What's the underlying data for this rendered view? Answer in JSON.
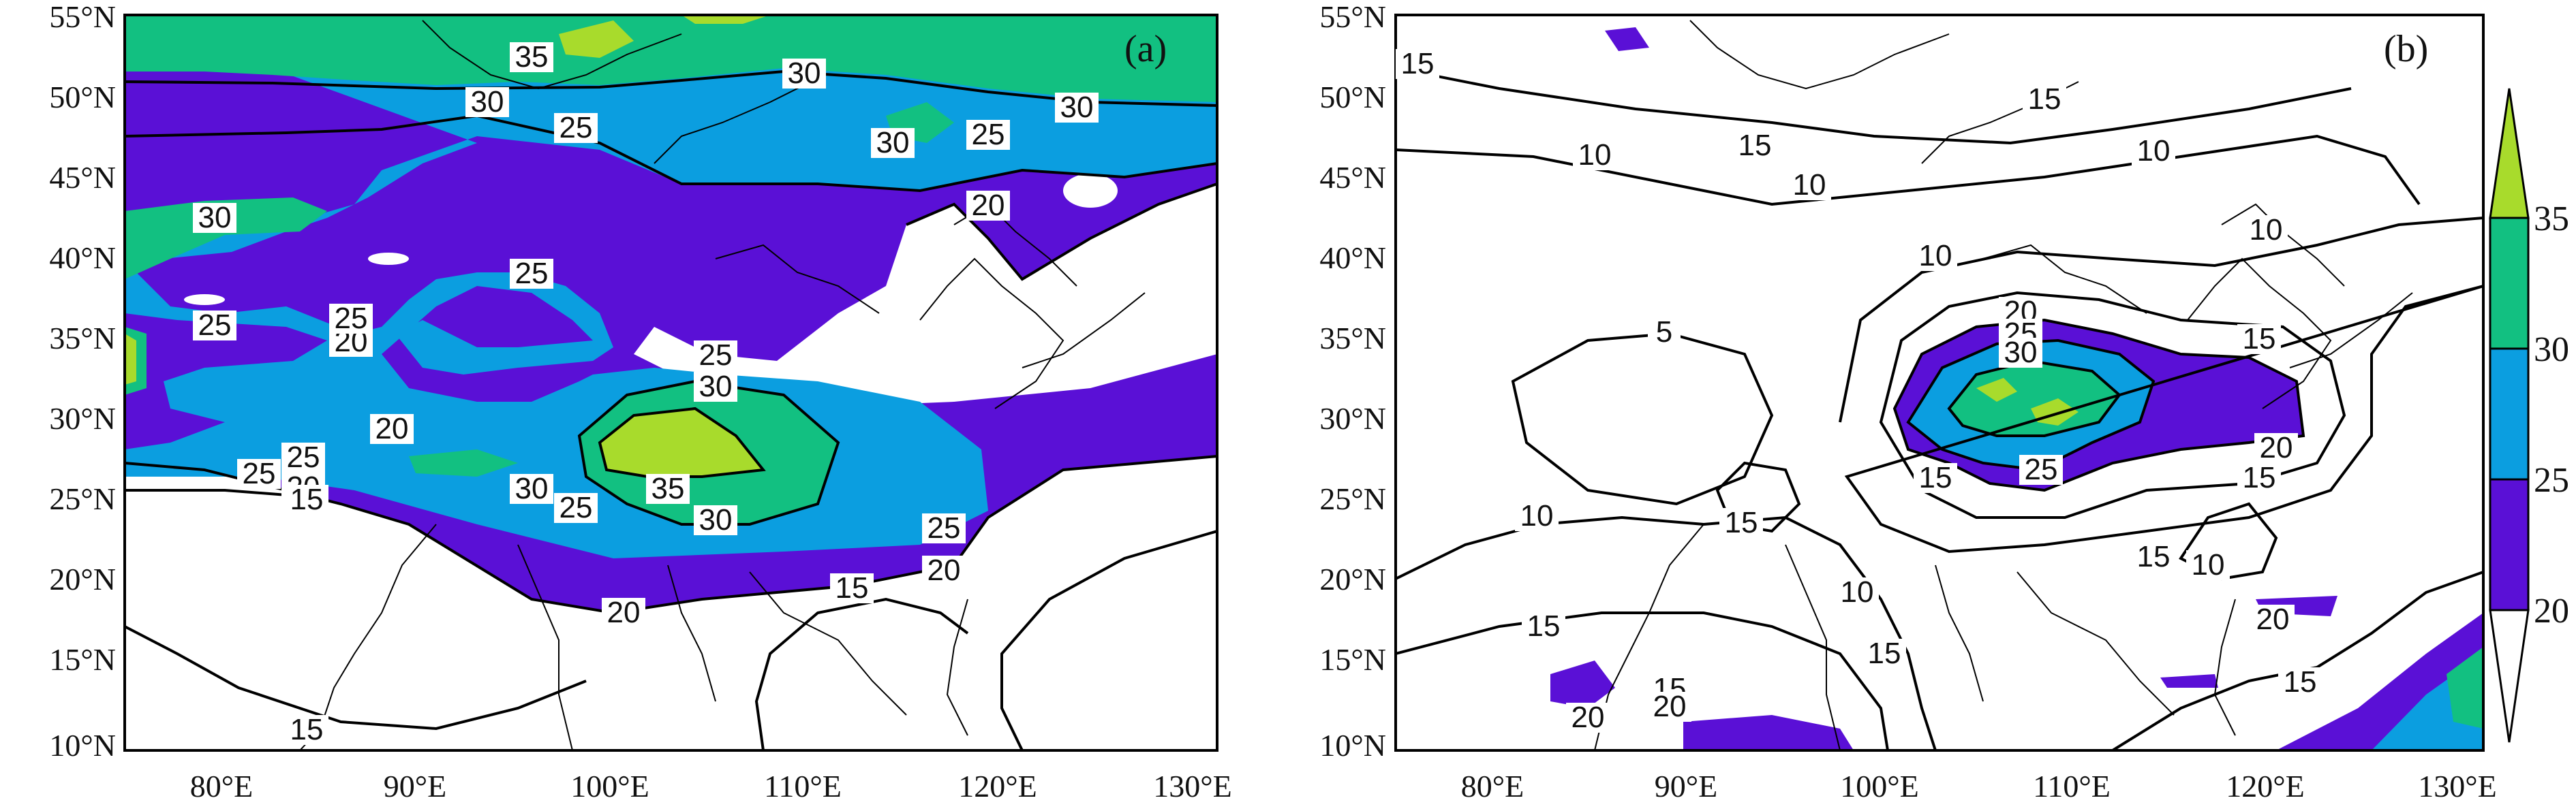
{
  "figure": {
    "colors": {
      "c20_25": "#5a10d6",
      "c25_30": "#0b9ee0",
      "c30_35": "#12c081",
      "c35_40": "#a8db2c",
      "below": "#ffffff",
      "line": "#000000"
    },
    "lat_ticks": [
      "55°N",
      "50°N",
      "45°N",
      "40°N",
      "35°N",
      "30°N",
      "25°N",
      "20°N",
      "15°N",
      "10°N"
    ],
    "lon_ticks": [
      "80°E",
      "90°E",
      "100°E",
      "110°E",
      "120°E",
      "130°E"
    ],
    "colorbar": {
      "levels": [
        "20",
        "25",
        "30",
        "35"
      ]
    },
    "panels": [
      {
        "label": "(a)",
        "contour_labels": [
          "35",
          "30",
          "30",
          "30",
          "25",
          "30",
          "25",
          "20",
          "30",
          "25",
          "25",
          "20",
          "25",
          "30",
          "20",
          "25",
          "20",
          "25",
          "30",
          "25",
          "35",
          "30",
          "25",
          "15",
          "25",
          "20",
          "20",
          "15",
          "15"
        ]
      },
      {
        "label": "(b)",
        "contour_labels": [
          "15",
          "15",
          "10",
          "10",
          "15",
          "10",
          "10",
          "10",
          "20",
          "25",
          "30",
          "5",
          "15",
          "15",
          "20",
          "25",
          "15",
          "10",
          "15",
          "15",
          "10",
          "10",
          "15",
          "20",
          "15",
          "20",
          "15",
          "15",
          "20"
        ]
      }
    ]
  }
}
